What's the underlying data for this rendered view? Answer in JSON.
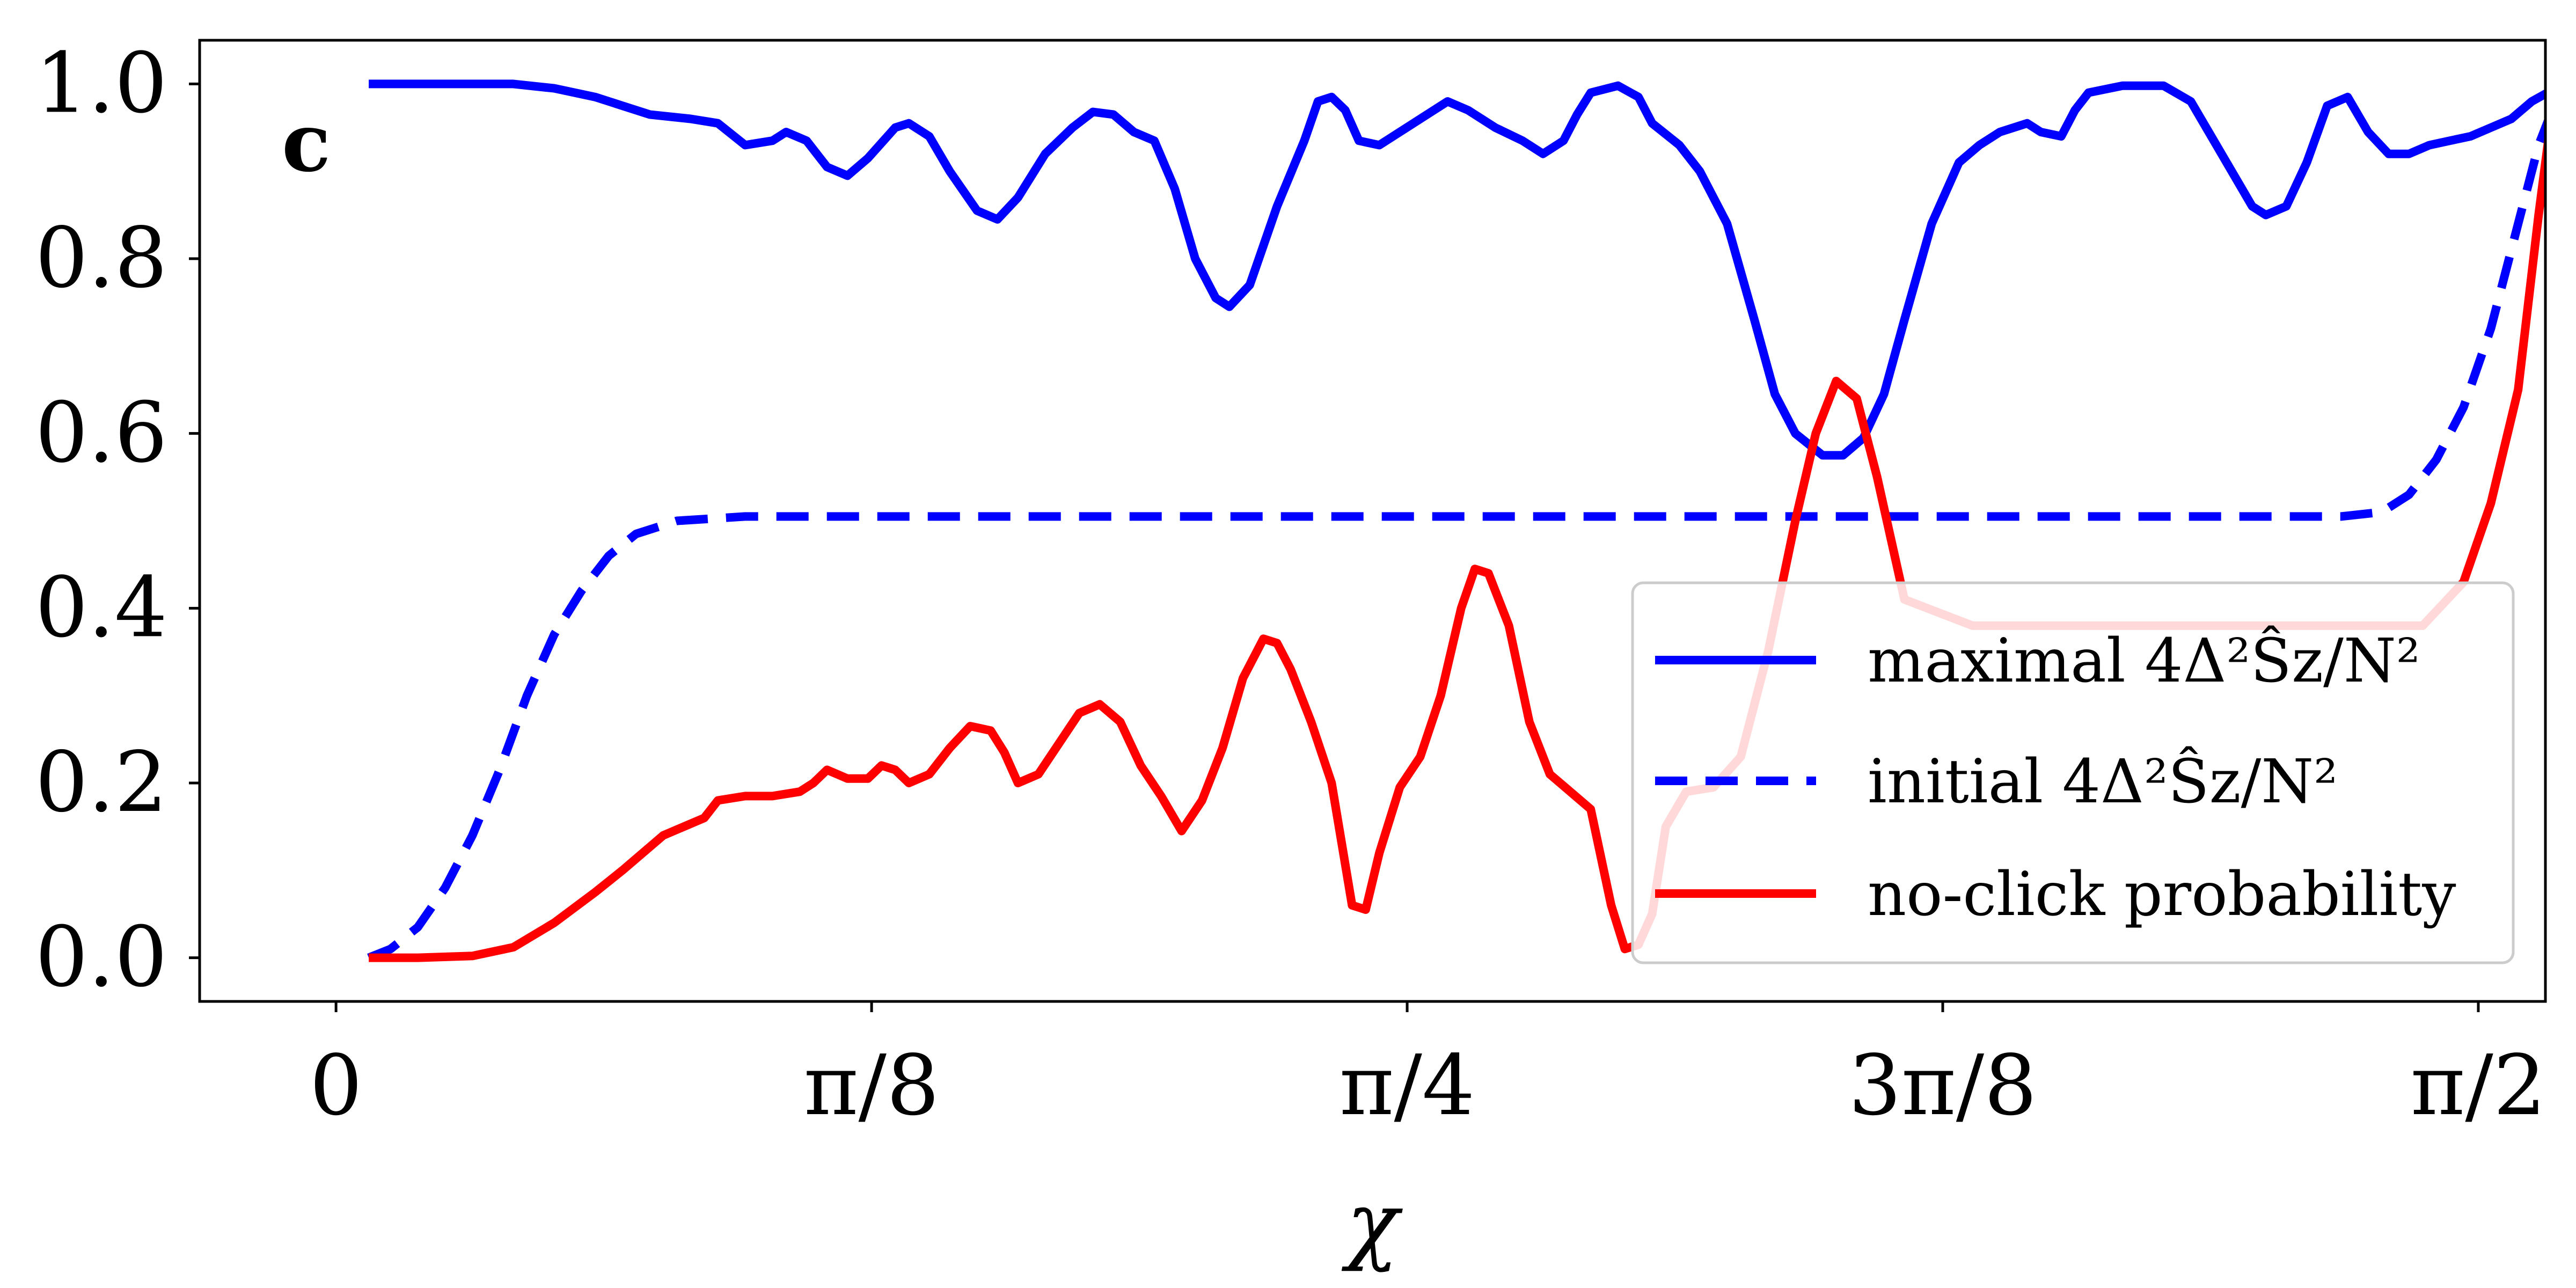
{
  "chart_data": {
    "type": "line",
    "panel_label": "c",
    "xlabel": "χ",
    "ylabel": "",
    "xlim": [
      -0.1,
      1.62
    ],
    "ylim": [
      -0.05,
      1.05
    ],
    "x_ticks": [
      {
        "value": 0,
        "label": "0"
      },
      {
        "value": 0.3927,
        "label": "π/8"
      },
      {
        "value": 0.7854,
        "label": "π/4"
      },
      {
        "value": 1.1781,
        "label": "3π/8"
      },
      {
        "value": 1.5708,
        "label": "π/2"
      }
    ],
    "y_ticks": [
      {
        "value": 0.0,
        "label": "0.0"
      },
      {
        "value": 0.2,
        "label": "0.2"
      },
      {
        "value": 0.4,
        "label": "0.4"
      },
      {
        "value": 0.6,
        "label": "0.6"
      },
      {
        "value": 0.8,
        "label": "0.8"
      },
      {
        "value": 1.0,
        "label": "1.0"
      }
    ],
    "grid": false,
    "legend_position": "lower-right",
    "series": [
      {
        "name": "maximal 4Δ²Ŝz/N²",
        "color": "#0000ff",
        "style": "solid",
        "points": [
          [
            0.024,
            1.0
          ],
          [
            0.05,
            1.0
          ],
          [
            0.1,
            1.0
          ],
          [
            0.13,
            1.0
          ],
          [
            0.16,
            0.995
          ],
          [
            0.19,
            0.985
          ],
          [
            0.21,
            0.975
          ],
          [
            0.23,
            0.965
          ],
          [
            0.26,
            0.96
          ],
          [
            0.28,
            0.955
          ],
          [
            0.3,
            0.93
          ],
          [
            0.32,
            0.935
          ],
          [
            0.33,
            0.945
          ],
          [
            0.345,
            0.935
          ],
          [
            0.36,
            0.905
          ],
          [
            0.375,
            0.895
          ],
          [
            0.39,
            0.915
          ],
          [
            0.41,
            0.95
          ],
          [
            0.42,
            0.955
          ],
          [
            0.435,
            0.94
          ],
          [
            0.45,
            0.9
          ],
          [
            0.47,
            0.855
          ],
          [
            0.485,
            0.845
          ],
          [
            0.5,
            0.87
          ],
          [
            0.52,
            0.92
          ],
          [
            0.54,
            0.95
          ],
          [
            0.555,
            0.968
          ],
          [
            0.57,
            0.965
          ],
          [
            0.585,
            0.945
          ],
          [
            0.6,
            0.935
          ],
          [
            0.615,
            0.88
          ],
          [
            0.63,
            0.8
          ],
          [
            0.645,
            0.755
          ],
          [
            0.655,
            0.745
          ],
          [
            0.67,
            0.77
          ],
          [
            0.69,
            0.86
          ],
          [
            0.71,
            0.935
          ],
          [
            0.72,
            0.98
          ],
          [
            0.73,
            0.985
          ],
          [
            0.74,
            0.97
          ],
          [
            0.75,
            0.935
          ],
          [
            0.765,
            0.93
          ],
          [
            0.78,
            0.945
          ],
          [
            0.8,
            0.965
          ],
          [
            0.815,
            0.98
          ],
          [
            0.83,
            0.97
          ],
          [
            0.85,
            0.95
          ],
          [
            0.87,
            0.935
          ],
          [
            0.885,
            0.92
          ],
          [
            0.9,
            0.935
          ],
          [
            0.91,
            0.965
          ],
          [
            0.92,
            0.99
          ],
          [
            0.94,
            0.998
          ],
          [
            0.955,
            0.985
          ],
          [
            0.965,
            0.955
          ],
          [
            0.985,
            0.93
          ],
          [
            1.0,
            0.9
          ],
          [
            1.02,
            0.84
          ],
          [
            1.04,
            0.73
          ],
          [
            1.055,
            0.645
          ],
          [
            1.07,
            0.6
          ],
          [
            1.09,
            0.575
          ],
          [
            1.105,
            0.575
          ],
          [
            1.12,
            0.595
          ],
          [
            1.135,
            0.645
          ],
          [
            1.15,
            0.73
          ],
          [
            1.17,
            0.84
          ],
          [
            1.19,
            0.91
          ],
          [
            1.205,
            0.93
          ],
          [
            1.22,
            0.945
          ],
          [
            1.24,
            0.955
          ],
          [
            1.25,
            0.945
          ],
          [
            1.265,
            0.94
          ],
          [
            1.275,
            0.97
          ],
          [
            1.285,
            0.99
          ],
          [
            1.31,
            0.998
          ],
          [
            1.34,
            0.998
          ],
          [
            1.36,
            0.98
          ],
          [
            1.375,
            0.94
          ],
          [
            1.39,
            0.9
          ],
          [
            1.405,
            0.86
          ],
          [
            1.415,
            0.85
          ],
          [
            1.43,
            0.86
          ],
          [
            1.445,
            0.91
          ],
          [
            1.46,
            0.975
          ],
          [
            1.475,
            0.985
          ],
          [
            1.49,
            0.945
          ],
          [
            1.505,
            0.92
          ],
          [
            1.52,
            0.92
          ],
          [
            1.535,
            0.93
          ],
          [
            1.55,
            0.935
          ],
          [
            1.565,
            0.94
          ],
          [
            1.58,
            0.95
          ],
          [
            1.595,
            0.96
          ],
          [
            1.61,
            0.98
          ],
          [
            1.625,
            0.993
          ],
          [
            1.635,
            1.0
          ]
        ]
      },
      {
        "name": "initial 4Δ²Ŝz/N²",
        "color": "#0000ff",
        "style": "dashed",
        "points": [
          [
            0.024,
            0.0
          ],
          [
            0.04,
            0.01
          ],
          [
            0.06,
            0.035
          ],
          [
            0.08,
            0.08
          ],
          [
            0.1,
            0.14
          ],
          [
            0.12,
            0.215
          ],
          [
            0.14,
            0.3
          ],
          [
            0.16,
            0.37
          ],
          [
            0.18,
            0.42
          ],
          [
            0.2,
            0.46
          ],
          [
            0.22,
            0.485
          ],
          [
            0.25,
            0.5
          ],
          [
            0.3,
            0.505
          ],
          [
            0.5,
            0.505
          ],
          [
            0.8,
            0.505
          ],
          [
            1.1,
            0.505
          ],
          [
            1.4,
            0.505
          ],
          [
            1.47,
            0.505
          ],
          [
            1.5,
            0.51
          ],
          [
            1.52,
            0.53
          ],
          [
            1.54,
            0.57
          ],
          [
            1.56,
            0.63
          ],
          [
            1.58,
            0.72
          ],
          [
            1.6,
            0.84
          ],
          [
            1.615,
            0.93
          ],
          [
            1.63,
            0.99
          ],
          [
            1.635,
            1.0
          ]
        ]
      },
      {
        "name": "no-click probability",
        "color": "#ff0000",
        "style": "solid",
        "points": [
          [
            0.024,
            0.0
          ],
          [
            0.06,
            0.0
          ],
          [
            0.1,
            0.002
          ],
          [
            0.13,
            0.012
          ],
          [
            0.16,
            0.04
          ],
          [
            0.19,
            0.075
          ],
          [
            0.21,
            0.1
          ],
          [
            0.24,
            0.14
          ],
          [
            0.27,
            0.16
          ],
          [
            0.28,
            0.18
          ],
          [
            0.3,
            0.185
          ],
          [
            0.32,
            0.185
          ],
          [
            0.34,
            0.19
          ],
          [
            0.35,
            0.2
          ],
          [
            0.36,
            0.215
          ],
          [
            0.375,
            0.205
          ],
          [
            0.39,
            0.205
          ],
          [
            0.4,
            0.22
          ],
          [
            0.41,
            0.215
          ],
          [
            0.42,
            0.2
          ],
          [
            0.435,
            0.21
          ],
          [
            0.45,
            0.24
          ],
          [
            0.465,
            0.265
          ],
          [
            0.48,
            0.26
          ],
          [
            0.49,
            0.235
          ],
          [
            0.5,
            0.2
          ],
          [
            0.515,
            0.21
          ],
          [
            0.53,
            0.245
          ],
          [
            0.545,
            0.28
          ],
          [
            0.56,
            0.29
          ],
          [
            0.575,
            0.27
          ],
          [
            0.59,
            0.22
          ],
          [
            0.605,
            0.185
          ],
          [
            0.62,
            0.145
          ],
          [
            0.635,
            0.18
          ],
          [
            0.65,
            0.24
          ],
          [
            0.665,
            0.32
          ],
          [
            0.68,
            0.365
          ],
          [
            0.69,
            0.36
          ],
          [
            0.7,
            0.33
          ],
          [
            0.715,
            0.27
          ],
          [
            0.73,
            0.2
          ],
          [
            0.745,
            0.06
          ],
          [
            0.755,
            0.055
          ],
          [
            0.765,
            0.12
          ],
          [
            0.78,
            0.195
          ],
          [
            0.795,
            0.23
          ],
          [
            0.81,
            0.3
          ],
          [
            0.825,
            0.4
          ],
          [
            0.835,
            0.445
          ],
          [
            0.845,
            0.44
          ],
          [
            0.86,
            0.38
          ],
          [
            0.875,
            0.27
          ],
          [
            0.89,
            0.21
          ],
          [
            0.905,
            0.19
          ],
          [
            0.92,
            0.17
          ],
          [
            0.935,
            0.06
          ],
          [
            0.945,
            0.01
          ],
          [
            0.955,
            0.015
          ],
          [
            0.965,
            0.05
          ],
          [
            0.975,
            0.15
          ],
          [
            0.99,
            0.19
          ],
          [
            1.01,
            0.195
          ],
          [
            1.03,
            0.23
          ],
          [
            1.05,
            0.35
          ],
          [
            1.07,
            0.5
          ],
          [
            1.085,
            0.6
          ],
          [
            1.1,
            0.66
          ],
          [
            1.115,
            0.64
          ],
          [
            1.13,
            0.55
          ],
          [
            1.14,
            0.48
          ],
          [
            1.15,
            0.41
          ],
          [
            1.2,
            0.38
          ],
          [
            1.3,
            0.38
          ],
          [
            1.45,
            0.38
          ],
          [
            1.53,
            0.38
          ],
          [
            1.56,
            0.43
          ],
          [
            1.58,
            0.52
          ],
          [
            1.6,
            0.65
          ],
          [
            1.615,
            0.85
          ],
          [
            1.625,
            0.97
          ],
          [
            1.635,
            1.0
          ]
        ]
      }
    ]
  }
}
